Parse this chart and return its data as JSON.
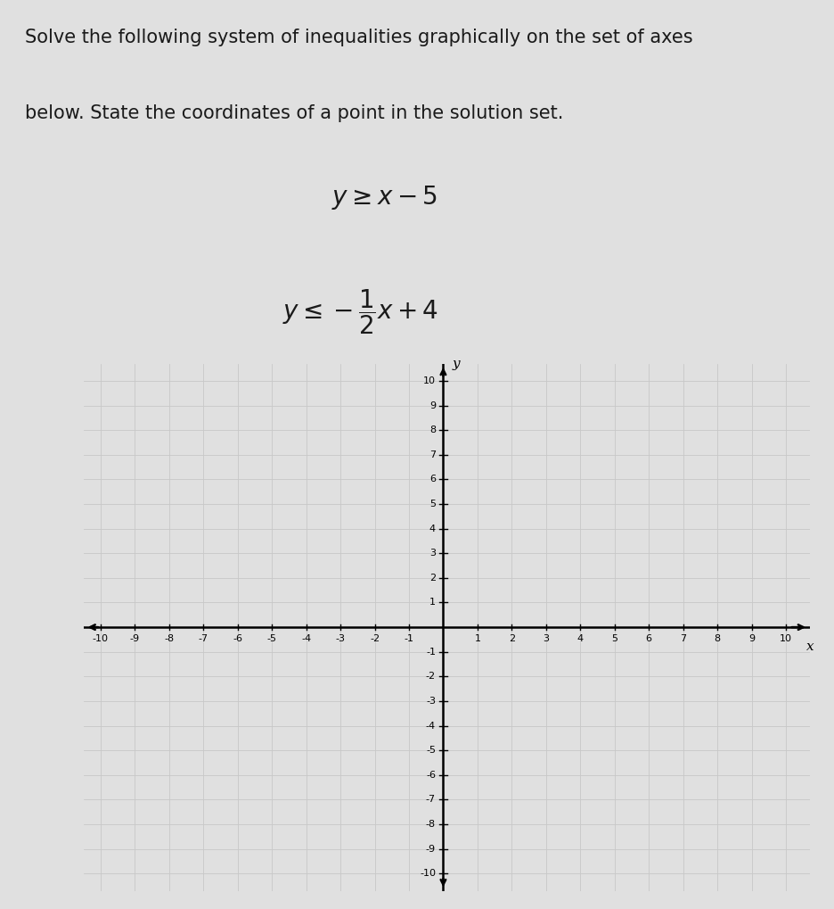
{
  "title_line1": "Solve the following system of inequalities graphically on the set of axes",
  "title_line2": "below. State the coordinates of a point in the solution set.",
  "xmin": -10,
  "xmax": 10,
  "ymin": -10,
  "ymax": 10,
  "grid_color": "#c8c8c8",
  "axis_color": "#000000",
  "grid_bg_color": "#e8e8e8",
  "fig_bg_color": "#e0e0e0",
  "text_color": "#1a1a1a",
  "tick_fontsize": 8,
  "label_fontsize": 11,
  "title_fontsize": 15,
  "ineq_fontsize": 20
}
